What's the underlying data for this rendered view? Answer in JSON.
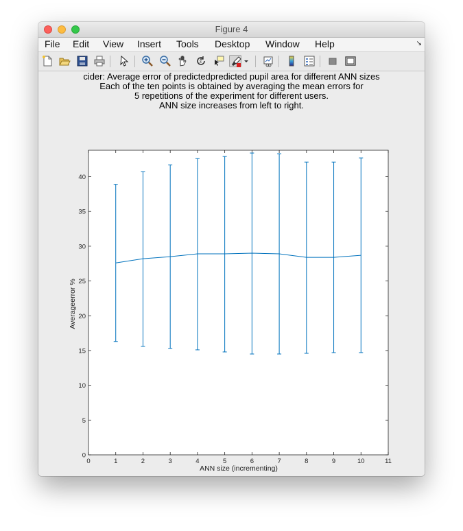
{
  "window": {
    "title": "Figure 4"
  },
  "menubar": {
    "items": [
      "File",
      "Edit",
      "View",
      "Insert",
      "Tools",
      "Desktop",
      "Window",
      "Help"
    ]
  },
  "toolbar": {
    "buttons": [
      "new-figure-icon",
      "open-file-icon",
      "save-icon",
      "print-icon",
      "pointer-icon",
      "zoom-in-icon",
      "zoom-out-icon",
      "pan-icon",
      "rotate-icon",
      "data-cursor-icon",
      "brush-icon",
      "link-plot-icon",
      "colorbar-icon",
      "legend-icon",
      "hide-plot-tools-icon",
      "show-plot-tools-icon"
    ]
  },
  "figure": {
    "title_lines": [
      "cider: Average error of predictedpredicted pupil area for different ANN sizes",
      "Each of the ten points is obtained by averaging the mean errors for",
      "5 repetitions of the experiment for different users.",
      "ANN size increases from left to right."
    ]
  },
  "chart_data": {
    "type": "line",
    "subtype": "errorbar",
    "xlabel": "ANN size (incrementing)",
    "ylabel": "Averageerror %",
    "xlim": [
      0,
      11
    ],
    "ylim": [
      0,
      43.8
    ],
    "xticks": [
      0,
      1,
      2,
      3,
      4,
      5,
      6,
      7,
      8,
      9,
      10,
      11
    ],
    "yticks": [
      0,
      5,
      10,
      15,
      20,
      25,
      30,
      35,
      40
    ],
    "grid": false,
    "color": "#0072bd",
    "x": [
      1,
      2,
      3,
      4,
      5,
      6,
      7,
      8,
      9,
      10
    ],
    "y": [
      27.6,
      28.2,
      28.5,
      28.9,
      28.9,
      29.0,
      28.9,
      28.4,
      28.4,
      28.7
    ],
    "err_lower": [
      16.3,
      15.6,
      15.3,
      15.1,
      14.8,
      14.5,
      14.5,
      14.6,
      14.7,
      14.7
    ],
    "err_upper": [
      38.9,
      40.7,
      41.7,
      42.6,
      42.9,
      43.4,
      43.3,
      42.1,
      42.1,
      42.7
    ]
  }
}
